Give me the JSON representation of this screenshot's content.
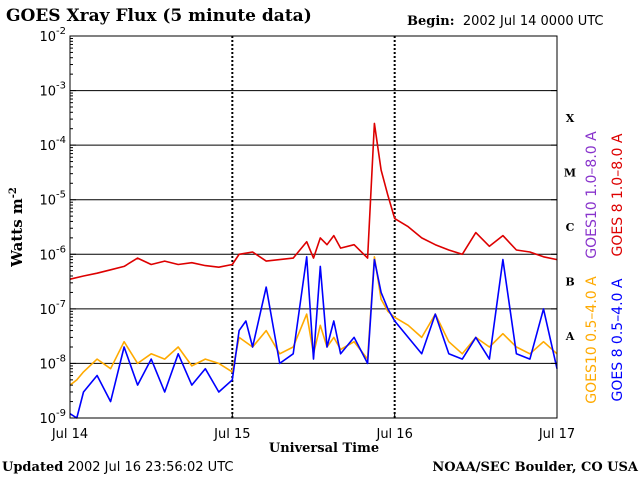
{
  "header": {
    "title": "GOES Xray Flux (5 minute data)",
    "begin_label": "Begin:",
    "begin_value": "2002 Jul 14 0000 UTC"
  },
  "footer": {
    "updated_label": "Updated",
    "updated_value": "2002 Jul 16 23:56:02 UTC",
    "credit": "NOAA/SEC Boulder, CO USA"
  },
  "colors": {
    "goes8_long": "#dd0000",
    "goes10_long": "#8833cc",
    "goes10_short": "#ffaa00",
    "goes8_short": "#0000ff"
  },
  "chart_data": {
    "type": "line",
    "title": "GOES Xray Flux (5 minute data)",
    "xlabel": "Universal Time",
    "ylabel": "Watts m",
    "ylabel_exp": "-2",
    "y_scale": "log",
    "ylim": [
      1e-09,
      0.01
    ],
    "xlim": [
      0,
      72
    ],
    "x_unit": "hours since 2002 Jul 14 0000 UTC",
    "x_ticks": [
      {
        "x": 0,
        "label": "Jul 14"
      },
      {
        "x": 24,
        "label": "Jul 15"
      },
      {
        "x": 48,
        "label": "Jul 16"
      },
      {
        "x": 72,
        "label": "Jul 17"
      }
    ],
    "y_ticks": [
      {
        "exp": -9,
        "base": "10",
        "label": "-9"
      },
      {
        "exp": -8,
        "base": "10",
        "label": "-8"
      },
      {
        "exp": -7,
        "base": "10",
        "label": "-7"
      },
      {
        "exp": -6,
        "base": "10",
        "label": "-6"
      },
      {
        "exp": -5,
        "base": "10",
        "label": "-5"
      },
      {
        "exp": -4,
        "base": "10",
        "label": "-4"
      },
      {
        "exp": -3,
        "base": "10",
        "label": "-3"
      },
      {
        "exp": -2,
        "base": "10",
        "label": "-2"
      }
    ],
    "flare_classes": [
      {
        "label": "A",
        "exp": -8
      },
      {
        "label": "B",
        "exp": -7
      },
      {
        "label": "C",
        "exp": -6
      },
      {
        "label": "M",
        "exp": -5
      },
      {
        "label": "X",
        "exp": -4
      }
    ],
    "grid": true,
    "legend": [
      {
        "label": "GOES10 1.0–8.0 A",
        "color": "#8833cc"
      },
      {
        "label": "GOES 8 1.0–8.0 A",
        "color": "#dd0000"
      },
      {
        "label": "GOES10 0.5–4.0 A",
        "color": "#ffaa00"
      },
      {
        "label": "GOES 8 0.5–4.0 A",
        "color": "#0000ff"
      }
    ],
    "series": [
      {
        "name": "GOES 8 1.0–8.0 A",
        "color": "#dd0000",
        "x": [
          0,
          2,
          4,
          6,
          8,
          10,
          12,
          14,
          16,
          18,
          20,
          22,
          24,
          25,
          27,
          29,
          31,
          33,
          35,
          36,
          37,
          38,
          39,
          40,
          42,
          44,
          45,
          46,
          47,
          48,
          50,
          52,
          54,
          56,
          58,
          60,
          62,
          64,
          66,
          68,
          70,
          72
        ],
        "y": [
          3.5e-07,
          4e-07,
          4.5e-07,
          5.2e-07,
          6e-07,
          8.5e-07,
          6.5e-07,
          7.5e-07,
          6.5e-07,
          7e-07,
          6.2e-07,
          5.8e-07,
          6.5e-07,
          1e-06,
          1.1e-06,
          7.5e-07,
          8e-07,
          8.5e-07,
          1.7e-06,
          8.5e-07,
          2e-06,
          1.5e-06,
          2.2e-06,
          1.3e-06,
          1.5e-06,
          8.5e-07,
          0.00025,
          3.5e-05,
          1.2e-05,
          4.5e-06,
          3.2e-06,
          2e-06,
          1.5e-06,
          1.2e-06,
          1e-06,
          2.5e-06,
          1.4e-06,
          2.2e-06,
          1.2e-06,
          1.1e-06,
          9e-07,
          8e-07
        ]
      },
      {
        "name": "GOES10 0.5–4.0 A",
        "color": "#ffaa00",
        "x": [
          0,
          1,
          2,
          4,
          6,
          8,
          10,
          12,
          14,
          16,
          18,
          20,
          22,
          24,
          25,
          27,
          29,
          31,
          33,
          35,
          36,
          37,
          38,
          39,
          40,
          42,
          44,
          45,
          46,
          47,
          48,
          50,
          52,
          54,
          56,
          58,
          60,
          62,
          64,
          66,
          68,
          70,
          72
        ],
        "y": [
          4e-09,
          5e-09,
          7e-09,
          1.2e-08,
          8e-09,
          2.5e-08,
          1e-08,
          1.5e-08,
          1.2e-08,
          2e-08,
          9e-09,
          1.2e-08,
          1e-08,
          7e-09,
          3e-08,
          2e-08,
          4e-08,
          1.5e-08,
          2e-08,
          8e-08,
          1.5e-08,
          5e-08,
          2e-08,
          3e-08,
          1.8e-08,
          2.5e-08,
          1.2e-08,
          9e-07,
          1.5e-07,
          9e-08,
          7e-08,
          5e-08,
          3e-08,
          8e-08,
          2.5e-08,
          1.5e-08,
          3e-08,
          2e-08,
          3.5e-08,
          2e-08,
          1.5e-08,
          2.5e-08,
          1.5e-08
        ]
      },
      {
        "name": "GOES 8 0.5–4.0 A",
        "color": "#0000ff",
        "x": [
          0,
          1,
          2,
          4,
          6,
          8,
          10,
          12,
          14,
          16,
          18,
          20,
          22,
          24,
          25,
          26,
          27,
          29,
          31,
          33,
          35,
          36,
          37,
          38,
          39,
          40,
          42,
          44,
          45,
          46,
          47,
          48,
          50,
          52,
          54,
          56,
          58,
          60,
          62,
          64,
          66,
          68,
          70,
          72
        ],
        "y": [
          1.2e-09,
          1e-09,
          3e-09,
          6e-09,
          2e-09,
          2e-08,
          4e-09,
          1.2e-08,
          3e-09,
          1.5e-08,
          4e-09,
          8e-09,
          3e-09,
          5e-09,
          4e-08,
          6e-08,
          2e-08,
          2.5e-07,
          1e-08,
          1.5e-08,
          9e-07,
          1.2e-08,
          6e-07,
          2e-08,
          6e-08,
          1.5e-08,
          3e-08,
          1e-08,
          8e-07,
          2e-07,
          1e-07,
          6e-08,
          3e-08,
          1.5e-08,
          8e-08,
          1.5e-08,
          1.2e-08,
          3e-08,
          1.2e-08,
          8e-07,
          1.5e-08,
          1.2e-08,
          1e-07,
          8e-09
        ]
      }
    ]
  }
}
